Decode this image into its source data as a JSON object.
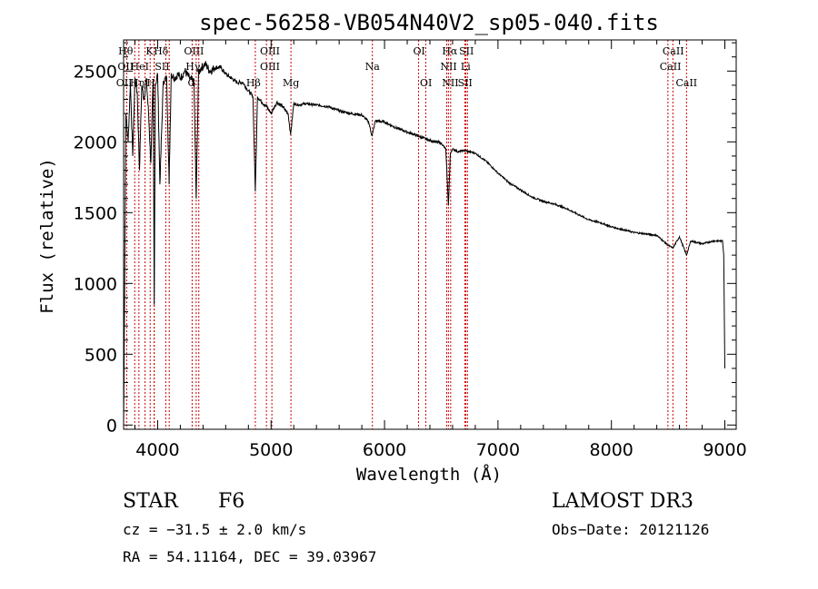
{
  "chart_data": {
    "type": "line",
    "title": "spec-56258-VB054N40V2_sp05-040.fits",
    "xlabel": "Wavelength (Å)",
    "ylabel": "Flux (relative)",
    "xlim": [
      3700,
      9100
    ],
    "ylim": [
      -30,
      2720
    ],
    "xticks": [
      4000,
      5000,
      6000,
      7000,
      8000,
      9000
    ],
    "yticks": [
      0,
      500,
      1000,
      1500,
      2000,
      2500
    ],
    "series": [
      {
        "name": "flux",
        "x": [
          3700,
          3720,
          3740,
          3760,
          3780,
          3800,
          3820,
          3840,
          3860,
          3880,
          3900,
          3920,
          3940,
          3960,
          3970,
          3980,
          4000,
          4020,
          4050,
          4080,
          4101,
          4120,
          4150,
          4180,
          4200,
          4240,
          4280,
          4320,
          4340,
          4360,
          4380,
          4420,
          4460,
          4500,
          4550,
          4600,
          4650,
          4700,
          4750,
          4800,
          4840,
          4861,
          4880,
          4920,
          4960,
          5000,
          5050,
          5100,
          5150,
          5172,
          5200,
          5250,
          5300,
          5400,
          5500,
          5600,
          5700,
          5800,
          5860,
          5890,
          5920,
          6000,
          6100,
          6200,
          6300,
          6400,
          6500,
          6540,
          6563,
          6580,
          6600,
          6650,
          6700,
          6800,
          6900,
          7000,
          7100,
          7200,
          7300,
          7400,
          7500,
          7600,
          7700,
          7800,
          7900,
          8000,
          8100,
          8200,
          8300,
          8400,
          8498,
          8542,
          8600,
          8662,
          8700,
          8800,
          8900,
          8980,
          8990,
          9000
        ],
        "values": [
          0,
          2200,
          2000,
          2420,
          1900,
          2450,
          2350,
          1800,
          2400,
          2300,
          2450,
          2200,
          1850,
          2440,
          850,
          2400,
          2480,
          1700,
          2430,
          2450,
          1700,
          2480,
          2450,
          2480,
          2450,
          2500,
          2450,
          2420,
          1600,
          2480,
          2520,
          2550,
          2500,
          2520,
          2530,
          2480,
          2450,
          2420,
          2420,
          2360,
          2320,
          1650,
          2320,
          2280,
          2250,
          2200,
          2280,
          2250,
          2200,
          2050,
          2270,
          2260,
          2270,
          2260,
          2250,
          2220,
          2200,
          2190,
          2140,
          2040,
          2150,
          2140,
          2100,
          2070,
          2040,
          2010,
          1990,
          1950,
          1550,
          1920,
          1950,
          1930,
          1940,
          1920,
          1860,
          1780,
          1710,
          1660,
          1610,
          1580,
          1560,
          1530,
          1490,
          1450,
          1430,
          1400,
          1380,
          1360,
          1350,
          1340,
          1270,
          1250,
          1330,
          1200,
          1300,
          1280,
          1300,
          1300,
          1200,
          400
        ]
      }
    ],
    "lines": [
      {
        "name": "Hθ",
        "wl": 3798
      },
      {
        "name": "K",
        "wl": 3934
      },
      {
        "name": "H",
        "wl": 3969
      },
      {
        "name": "Hδ",
        "wl": 4102
      },
      {
        "name": "OII",
        "wl": 3727
      },
      {
        "name": "HeI",
        "wl": 3889
      },
      {
        "name": "SII",
        "wl": 4072
      },
      {
        "name": "Hγ",
        "wl": 4340
      },
      {
        "name": "Hη",
        "wl": 3835
      },
      {
        "name": "Hε",
        "wl": 3970
      },
      {
        "name": "OIII",
        "wl": 4363
      },
      {
        "name": "G",
        "wl": 4304
      },
      {
        "name": "OIII",
        "wl": 4959
      },
      {
        "name": "OIII",
        "wl": 5007
      },
      {
        "name": "Hβ",
        "wl": 4861
      },
      {
        "name": "Mg",
        "wl": 5175
      },
      {
        "name": "Na",
        "wl": 5893
      },
      {
        "name": "OI",
        "wl": 6300
      },
      {
        "name": "OI",
        "wl": 6364
      },
      {
        "name": "Hα",
        "wl": 6563
      },
      {
        "name": "NII",
        "wl": 6548
      },
      {
        "name": "NII",
        "wl": 6583
      },
      {
        "name": "Li",
        "wl": 6708
      },
      {
        "name": "SII",
        "wl": 6717
      },
      {
        "name": "SII",
        "wl": 6731
      },
      {
        "name": "CaII",
        "wl": 8498
      },
      {
        "name": "CaII",
        "wl": 8542
      },
      {
        "name": "CaII",
        "wl": 8662
      }
    ],
    "line_labels": [
      {
        "text": "Hθ",
        "wl": 3718,
        "tier": 0
      },
      {
        "text": "K",
        "wl": 3928,
        "tier": 0
      },
      {
        "text": "Hδ",
        "wl": 4030,
        "tier": 0
      },
      {
        "text": "OIII",
        "wl": 4320,
        "tier": 0
      },
      {
        "text": "OIII",
        "wl": 4990,
        "tier": 0
      },
      {
        "text": "OI",
        "wl": 6305,
        "tier": 0
      },
      {
        "text": "Hα",
        "wl": 6575,
        "tier": 0
      },
      {
        "text": "SII",
        "wl": 6722,
        "tier": 0
      },
      {
        "text": "CaII",
        "wl": 8545,
        "tier": 0
      },
      {
        "text": "OII",
        "wl": 3718,
        "tier": 1
      },
      {
        "text": "HeI",
        "wl": 3842,
        "tier": 1
      },
      {
        "text": "SII",
        "wl": 4040,
        "tier": 1
      },
      {
        "text": "Hγ",
        "wl": 4312,
        "tier": 1
      },
      {
        "text": "OIII",
        "wl": 4990,
        "tier": 1
      },
      {
        "text": "Na",
        "wl": 5893,
        "tier": 1
      },
      {
        "text": "NII",
        "wl": 6565,
        "tier": 1
      },
      {
        "text": "Li",
        "wl": 6715,
        "tier": 1
      },
      {
        "text": "CaII",
        "wl": 8520,
        "tier": 1
      },
      {
        "text": "OII",
        "wl": 3705,
        "tier": 2
      },
      {
        "text": "Hη",
        "wl": 3820,
        "tier": 2
      },
      {
        "text": "H",
        "wl": 3940,
        "tier": 2
      },
      {
        "text": "G",
        "wl": 4300,
        "tier": 2
      },
      {
        "text": "Hβ",
        "wl": 4845,
        "tier": 2
      },
      {
        "text": "Mg",
        "wl": 5175,
        "tier": 2
      },
      {
        "text": "OI",
        "wl": 6365,
        "tier": 2
      },
      {
        "text": "NII",
        "wl": 6580,
        "tier": 2
      },
      {
        "text": "SII",
        "wl": 6710,
        "tier": 2
      },
      {
        "text": "CaII",
        "wl": 8662,
        "tier": 2
      }
    ]
  },
  "info": {
    "class": "STAR",
    "subclass": "F6",
    "survey": "LAMOST DR3",
    "cz": "cz = −31.5 ± 2.0 km/s",
    "obs_date": "Obs−Date: 20121126",
    "radec": "RA =  54.11164, DEC =  39.03967"
  },
  "colors": {
    "spectrum": "#000000",
    "lines": "#cc0000",
    "axes": "#000000"
  }
}
